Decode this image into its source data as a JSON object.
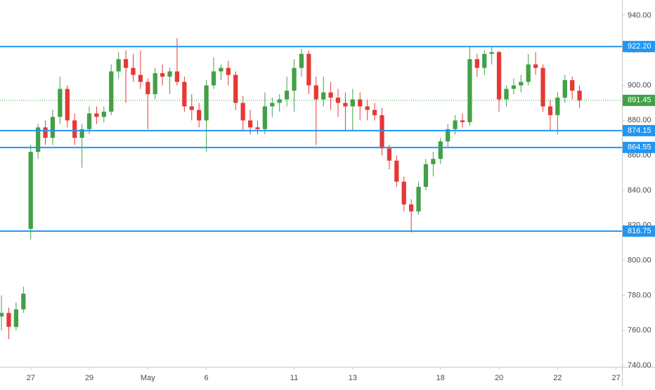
{
  "chart_data": {
    "type": "candlestick",
    "x": [
      -1,
      -0.75,
      -0.5,
      -0.25,
      0,
      0.25,
      0.5,
      0.75,
      1,
      1.25,
      1.5,
      1.75,
      2,
      2.25,
      2.5,
      2.75,
      3,
      3.25,
      3.5,
      3.75,
      4,
      4.25,
      4.5,
      4.75,
      5,
      5.25,
      5.5,
      5.75,
      6,
      6.25,
      6.5,
      6.75,
      7,
      7.25,
      7.5,
      7.75,
      8,
      8.25,
      8.5,
      8.75,
      9,
      9.25,
      9.5,
      9.75,
      10,
      10.25,
      10.5,
      10.75,
      11,
      11.25,
      11.5,
      11.75,
      12,
      12.25,
      12.5,
      12.75,
      13,
      13.25,
      13.5,
      13.75,
      14,
      14.25,
      14.5,
      14.75,
      15,
      15.25,
      15.5,
      15.75,
      16,
      16.25,
      16.5,
      16.75,
      17,
      17.25,
      17.5,
      17.75,
      18,
      18.25,
      18.5,
      18.75
    ],
    "open": [
      768,
      770,
      762,
      772,
      818,
      862,
      876,
      870,
      882,
      898,
      880,
      870,
      875,
      884,
      882,
      885,
      908,
      915,
      910,
      906,
      902,
      895,
      907,
      905,
      908,
      902,
      888,
      886,
      880,
      900,
      908,
      910,
      906,
      890,
      880,
      876,
      875,
      888,
      890,
      892,
      897,
      910,
      918,
      900,
      892,
      896,
      893,
      890,
      888,
      892,
      888,
      886,
      883,
      864,
      857,
      845,
      832,
      828,
      842,
      855,
      858,
      868,
      875,
      880,
      879,
      915,
      910,
      918,
      919,
      892,
      898,
      900,
      902,
      912,
      910,
      888,
      883,
      893,
      903,
      897
    ],
    "high": [
      780,
      773,
      776,
      785,
      866,
      878,
      880,
      886,
      905,
      900,
      884,
      878,
      888,
      888,
      888,
      912,
      919,
      920,
      918,
      920,
      904,
      910,
      912,
      910,
      927,
      905,
      895,
      890,
      903,
      916,
      912,
      914,
      908,
      894,
      886,
      880,
      896,
      893,
      895,
      905,
      915,
      921,
      920,
      905,
      905,
      902,
      898,
      896,
      898,
      896,
      892,
      890,
      887,
      866,
      860,
      848,
      835,
      845,
      858,
      862,
      870,
      878,
      883,
      884,
      922,
      918,
      920,
      922,
      920,
      900,
      904,
      906,
      918,
      919,
      912,
      892,
      896,
      906,
      905,
      900
    ],
    "low": [
      760,
      755,
      760,
      770,
      812,
      858,
      866,
      866,
      878,
      876,
      866,
      853,
      872,
      878,
      879,
      883,
      904,
      890,
      902,
      898,
      875,
      892,
      900,
      895,
      900,
      885,
      880,
      876,
      862,
      898,
      903,
      900,
      886,
      874,
      872,
      872,
      872,
      882,
      885,
      888,
      885,
      905,
      895,
      866,
      888,
      886,
      882,
      874,
      874,
      880,
      880,
      880,
      860,
      852,
      842,
      828,
      816,
      826,
      840,
      848,
      855,
      865,
      872,
      876,
      877,
      905,
      906,
      912,
      885,
      888,
      895,
      896,
      900,
      906,
      885,
      874,
      872,
      890,
      892,
      887
    ],
    "close": [
      770,
      762,
      772,
      781,
      862,
      876,
      870,
      882,
      898,
      880,
      870,
      875,
      884,
      882,
      885,
      908,
      915,
      910,
      906,
      902,
      895,
      907,
      905,
      908,
      902,
      888,
      886,
      880,
      900,
      908,
      910,
      906,
      890,
      880,
      876,
      875,
      888,
      890,
      892,
      897,
      910,
      918,
      900,
      892,
      896,
      893,
      890,
      888,
      892,
      888,
      886,
      883,
      864,
      857,
      845,
      832,
      828,
      842,
      855,
      858,
      868,
      875,
      880,
      879,
      915,
      910,
      918,
      919,
      892,
      898,
      900,
      902,
      912,
      910,
      888,
      883,
      893,
      903,
      897,
      891.45
    ],
    "up_color": "#43a047",
    "down_color": "#e53935",
    "xlim": [
      -1.05,
      20.2
    ],
    "xticks": [
      {
        "value": 0,
        "label": "27"
      },
      {
        "value": 2,
        "label": "29"
      },
      {
        "value": 4,
        "label": "May"
      },
      {
        "value": 6,
        "label": "6"
      },
      {
        "value": 9,
        "label": "11"
      },
      {
        "value": 11,
        "label": "13"
      },
      {
        "value": 14,
        "label": "18"
      },
      {
        "value": 16,
        "label": "20"
      },
      {
        "value": 18,
        "label": "22"
      },
      {
        "value": 20,
        "label": "27"
      }
    ],
    "ylim": [
      739.2,
      948.8
    ],
    "yticks": [
      {
        "value": 740,
        "label": "740.00"
      },
      {
        "value": 760,
        "label": "760.00"
      },
      {
        "value": 780,
        "label": "780.00"
      },
      {
        "value": 800,
        "label": "800.00"
      },
      {
        "value": 820,
        "label": "820.00"
      },
      {
        "value": 840,
        "label": "840.00"
      },
      {
        "value": 860,
        "label": "860.00"
      },
      {
        "value": 880,
        "label": "880.00"
      },
      {
        "value": 900,
        "label": "900.00"
      },
      {
        "value": 920,
        "label": "920.00"
      },
      {
        "value": 940,
        "label": "940.00"
      }
    ],
    "levels": [
      {
        "value": 922.2,
        "label": "922.20"
      },
      {
        "value": 874.15,
        "label": "874.15"
      },
      {
        "value": 864.55,
        "label": "864.55"
      },
      {
        "value": 816.75,
        "label": "816.75"
      }
    ],
    "level_color": "#2196f3",
    "last_price": {
      "value": 891.45,
      "label": "891.45"
    },
    "last_price_color": "#43a047"
  }
}
